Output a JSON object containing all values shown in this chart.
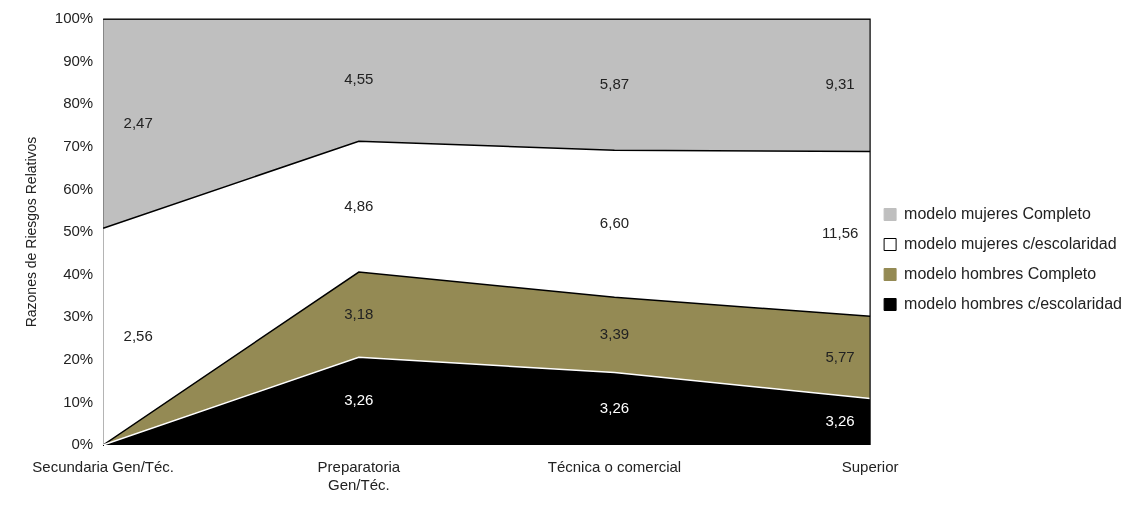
{
  "chart_data": {
    "type": "area",
    "stacked": true,
    "ylabel": "Razones de Riesgos Relativos",
    "categories": [
      "Secundaria Gen/Téc.",
      "Preparatoria Gen/Téc.",
      "Técnica o comercial",
      "Superior"
    ],
    "series": [
      {
        "name": "modelo hombres c/escolaridad",
        "color": "#000000",
        "values": [
          0,
          20.6,
          17.0,
          10.9
        ]
      },
      {
        "name": "modelo hombres Completo",
        "color": "#948a54",
        "values": [
          0,
          20.0,
          17.7,
          19.3
        ]
      },
      {
        "name": "modelo mujeres c/escolaridad",
        "color": "#ffffff",
        "values": [
          50.9,
          30.7,
          34.5,
          38.7
        ]
      },
      {
        "name": "modelo mujeres Completo",
        "color": "#bfbfbf",
        "values": [
          49.1,
          28.7,
          30.8,
          31.1
        ]
      }
    ],
    "annotations": [
      "2,56",
      "2,47",
      "3,26",
      "3,18",
      "4,86",
      "4,55",
      "3,26",
      "3,39",
      "6,60",
      "5,87",
      "3,26",
      "5,77",
      "11,56",
      "9,31"
    ],
    "ylim": [
      0,
      100
    ],
    "yticks": [
      {
        "value": 0,
        "label": "0%"
      },
      {
        "value": 10,
        "label": "10%"
      },
      {
        "value": 20,
        "label": "20%"
      },
      {
        "value": 30,
        "label": "30%"
      },
      {
        "value": 40,
        "label": "40%"
      },
      {
        "value": 50,
        "label": "50%"
      },
      {
        "value": 60,
        "label": "60%"
      },
      {
        "value": 70,
        "label": "70%"
      },
      {
        "value": 80,
        "label": "80%"
      },
      {
        "value": 90,
        "label": "90%"
      },
      {
        "value": 100,
        "label": "100%"
      }
    ],
    "grid": false,
    "legend": "right"
  }
}
